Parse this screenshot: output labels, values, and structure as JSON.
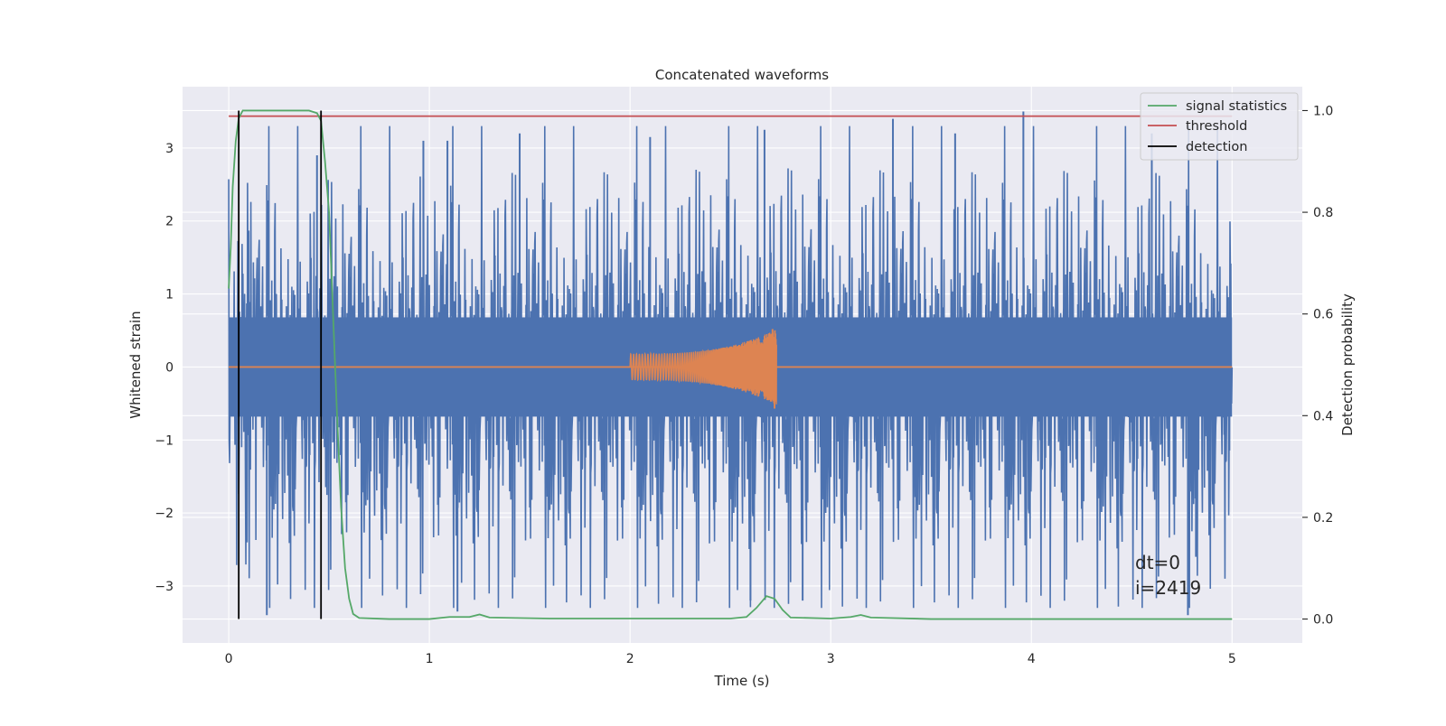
{
  "chart_data": {
    "type": "line",
    "title": "Concatenated waveforms",
    "xlabel": "Time (s)",
    "ylabel": "Whitened strain",
    "y2label": "Detection probability",
    "xlim": [
      -0.23,
      5.35
    ],
    "ylim": [
      -3.78,
      3.84
    ],
    "y2lim": [
      -0.047,
      1.047
    ],
    "xticks": [
      0,
      1,
      2,
      3,
      4,
      5
    ],
    "xtick_labels": [
      "0",
      "1",
      "2",
      "3",
      "4",
      "5"
    ],
    "yticks": [
      -3,
      -2,
      -1,
      0,
      1,
      2,
      3
    ],
    "ytick_labels": [
      "−3",
      "−2",
      "−1",
      "0",
      "1",
      "2",
      "3"
    ],
    "y2ticks": [
      0.0,
      0.2,
      0.4,
      0.6,
      0.8,
      1.0
    ],
    "y2tick_labels": [
      "0.0",
      "0.2",
      "0.4",
      "0.6",
      "0.8",
      "1.0"
    ],
    "grid": true,
    "legend_position": "top-right",
    "colors": {
      "background": "#eaeaf2",
      "grid": "#ffffff",
      "strain": "#4c72b0",
      "injection": "#dd8452",
      "signal_statistics": "#55a868",
      "threshold": "#c44e52",
      "detection": "#000000"
    },
    "series": [
      {
        "name": "",
        "role": "whitened strain",
        "x_range": [
          0,
          5
        ],
        "envelope_upper": [
          [
            0,
            2.1
          ],
          [
            0.2,
            2.4
          ],
          [
            0.5,
            2.5
          ],
          [
            1,
            2.4
          ],
          [
            1.5,
            2.6
          ],
          [
            2,
            2.4
          ],
          [
            2.5,
            2.6
          ],
          [
            3,
            2.5
          ],
          [
            3.5,
            2.6
          ],
          [
            4,
            2.5
          ],
          [
            4.5,
            2.6
          ],
          [
            5,
            2.4
          ]
        ],
        "envelope_lower": [
          [
            0,
            -1.7
          ],
          [
            0.2,
            -2.6
          ],
          [
            0.5,
            -2.3
          ],
          [
            1,
            -2.5
          ],
          [
            1.5,
            -2.4
          ],
          [
            2,
            -2.6
          ],
          [
            2.5,
            -2.5
          ],
          [
            3,
            -2.6
          ],
          [
            3.5,
            -2.4
          ],
          [
            4,
            -2.5
          ],
          [
            4.5,
            -2.5
          ],
          [
            5,
            -2.2
          ]
        ],
        "peaks": [
          [
            0.19,
            -3.4
          ],
          [
            0.44,
            2.9
          ],
          [
            0.97,
            3.1
          ],
          [
            1.09,
            3.1
          ],
          [
            1.14,
            -3.35
          ],
          [
            1.45,
            3.2
          ],
          [
            2.1,
            3.15
          ],
          [
            2.6,
            -3.2
          ],
          [
            2.67,
            3.25
          ],
          [
            2.86,
            -3.2
          ],
          [
            3.31,
            3.4
          ],
          [
            3.62,
            3.2
          ],
          [
            3.96,
            3.5
          ],
          [
            4.6,
            3.2
          ],
          [
            4.78,
            -3.4
          ],
          [
            4.82,
            -2.6
          ]
        ]
      },
      {
        "name": "",
        "role": "injected waveform",
        "x": [
          2.0,
          2.73
        ],
        "amplitude_start": 0.18,
        "amplitude_peak": 0.52,
        "amplitude_trough": -0.57
      },
      {
        "name": "signal statistics",
        "axis": "right",
        "points": [
          [
            0,
            0.65
          ],
          [
            0.01,
            0.73
          ],
          [
            0.02,
            0.85
          ],
          [
            0.035,
            0.94
          ],
          [
            0.05,
            0.985
          ],
          [
            0.07,
            1.0
          ],
          [
            0.4,
            1.0
          ],
          [
            0.44,
            0.995
          ],
          [
            0.46,
            0.98
          ],
          [
            0.48,
            0.9
          ],
          [
            0.5,
            0.8
          ],
          [
            0.52,
            0.6
          ],
          [
            0.54,
            0.4
          ],
          [
            0.56,
            0.22
          ],
          [
            0.58,
            0.1
          ],
          [
            0.6,
            0.04
          ],
          [
            0.62,
            0.01
          ],
          [
            0.65,
            0.002
          ],
          [
            0.8,
            0.0
          ],
          [
            1.0,
            0.0
          ],
          [
            1.1,
            0.004
          ],
          [
            1.2,
            0.004
          ],
          [
            1.25,
            0.009
          ],
          [
            1.3,
            0.003
          ],
          [
            1.6,
            0.001
          ],
          [
            2.5,
            0.001
          ],
          [
            2.58,
            0.004
          ],
          [
            2.63,
            0.022
          ],
          [
            2.68,
            0.045
          ],
          [
            2.72,
            0.04
          ],
          [
            2.76,
            0.018
          ],
          [
            2.8,
            0.003
          ],
          [
            3.0,
            0.001
          ],
          [
            3.1,
            0.004
          ],
          [
            3.15,
            0.008
          ],
          [
            3.2,
            0.003
          ],
          [
            3.5,
            0.0
          ],
          [
            4.0,
            0.0
          ],
          [
            5.0,
            0.0
          ]
        ]
      },
      {
        "name": "threshold",
        "axis": "right",
        "x": [
          0,
          5
        ],
        "value": 0.989
      },
      {
        "name": "detection",
        "axis": "right",
        "x": [
          0.05,
          0.46
        ],
        "y_range": [
          0.0,
          1.0
        ]
      }
    ],
    "annotations": [
      "dt=0",
      "i=2419"
    ]
  }
}
